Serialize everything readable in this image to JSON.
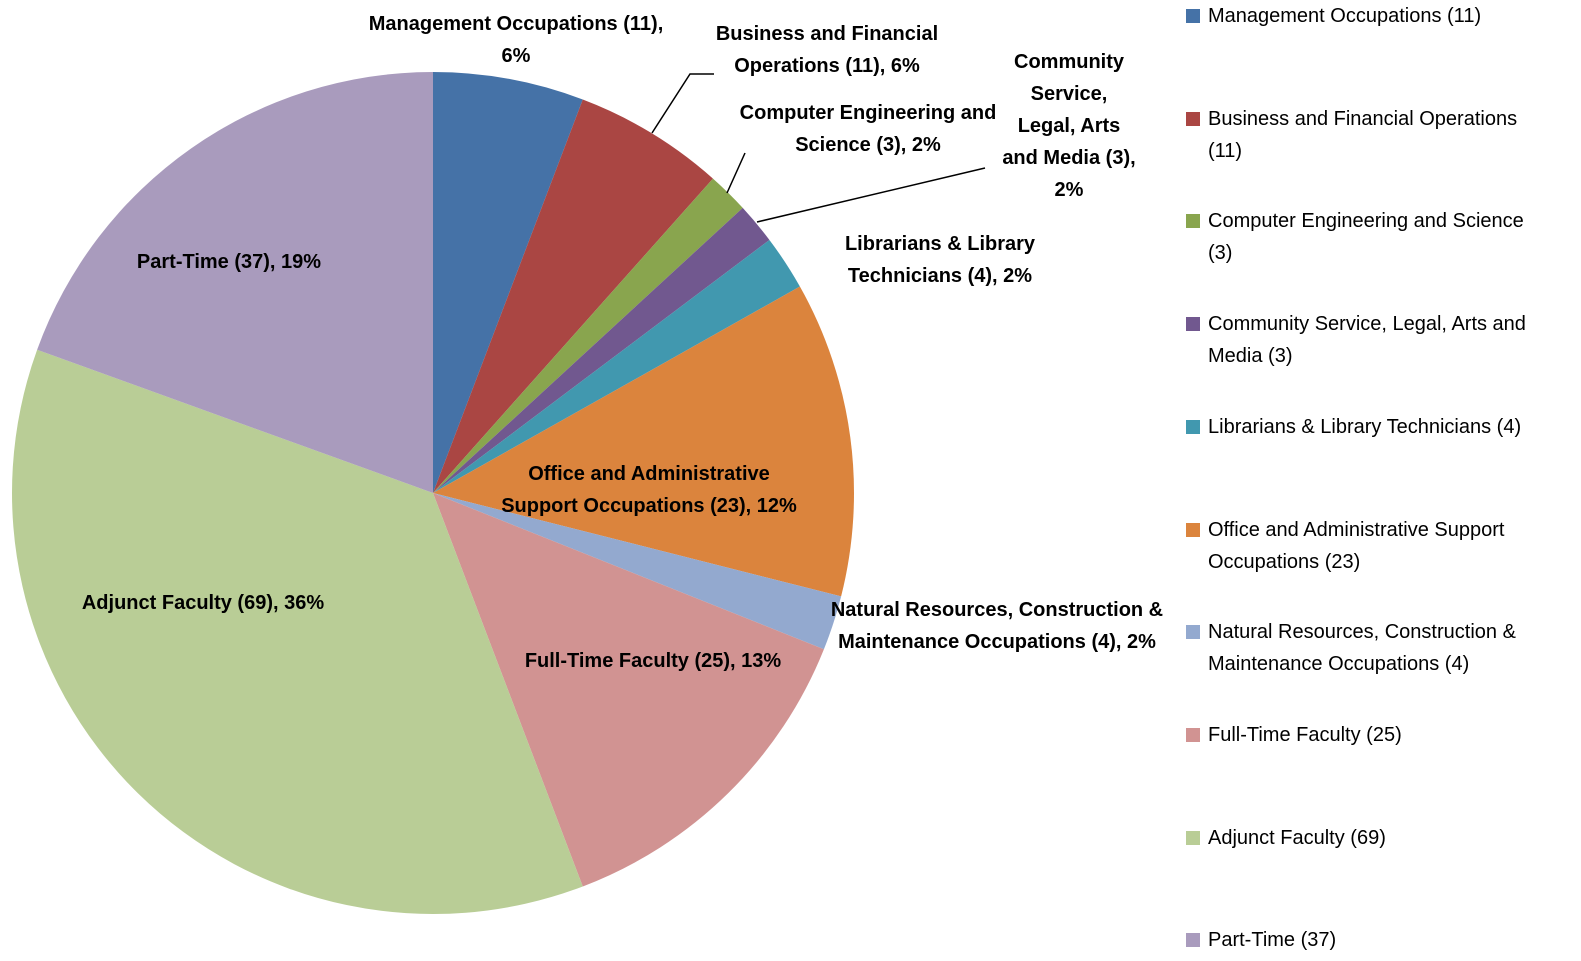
{
  "chart_data": {
    "type": "pie",
    "categories": [
      "Management Occupations (11)",
      "Business and Financial Operations (11)",
      "Computer Engineering and Science (3)",
      "Community Service, Legal, Arts and Media (3)",
      "Librarians & Library Technicians (4)",
      "Office and Administrative Support Occupations (23)",
      "Natural Resources, Construction & Maintenance Occupations (4)",
      "Full-Time Faculty (25)",
      "Adjunct Faculty (69)",
      "Part-Time (37)"
    ],
    "values": [
      11,
      11,
      3,
      3,
      4,
      23,
      4,
      25,
      69,
      37
    ],
    "value_labels": [
      "Management Occupations (11), 6%",
      "Business and Financial Operations (11), 6%",
      "Computer Engineering and Science (3), 2%",
      "Community Service, Legal, Arts and Media (3), 2%",
      "Librarians & Library Technicians (4), 2%",
      "Office and Administrative Support Occupations (23), 12%",
      "Natural Resources, Construction & Maintenance Occupations (4), 2%",
      "Full-Time Faculty (25), 13%",
      "Adjunct Faculty (69), 36%",
      "Part-Time (37), 19%"
    ],
    "colors": [
      "#4572a7",
      "#aa4643",
      "#89a54e",
      "#71588f",
      "#4198af",
      "#db843d",
      "#93a9cf",
      "#d19392",
      "#b9cd96",
      "#a99bbd"
    ],
    "legend": "right"
  }
}
